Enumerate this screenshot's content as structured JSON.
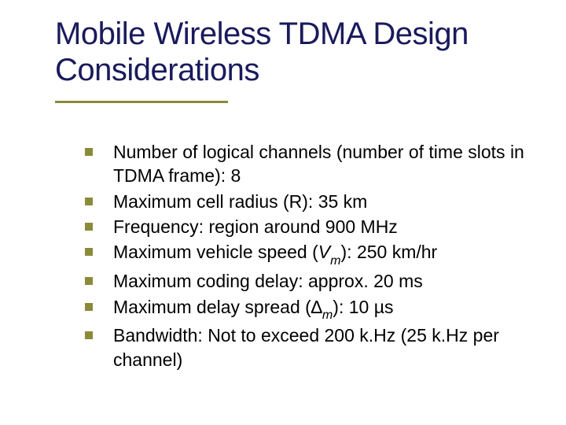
{
  "slide": {
    "title": "Mobile Wireless TDMA Design Considerations",
    "title_color": "#1a1a5c",
    "title_fontsize": 40,
    "underline_color": "#8a8a3a",
    "underline_width": 220,
    "bullet_color": "#8a8a3a",
    "bullet_size": 10,
    "body_fontsize": 23,
    "body_color": "#000000",
    "background_color": "#ffffff",
    "items": [
      {
        "html": "Number of logical channels (number of time slots in TDMA frame): 8"
      },
      {
        "html": "Maximum cell radius (R): 35 km"
      },
      {
        "html": "Frequency: region around 900 MHz"
      },
      {
        "html": "Maximum vehicle speed (<span class=\"ital\">V</span><span class=\"sub\">m</span>): 250 km/hr"
      },
      {
        "html": "Maximum coding delay: approx. 20 ms"
      },
      {
        "html": "Maximum delay spread (∆<span class=\"sub\">m</span>): 10 µs"
      },
      {
        "html": "Bandwidth: Not to exceed 200 k.Hz (25 k.Hz per channel)"
      }
    ]
  }
}
